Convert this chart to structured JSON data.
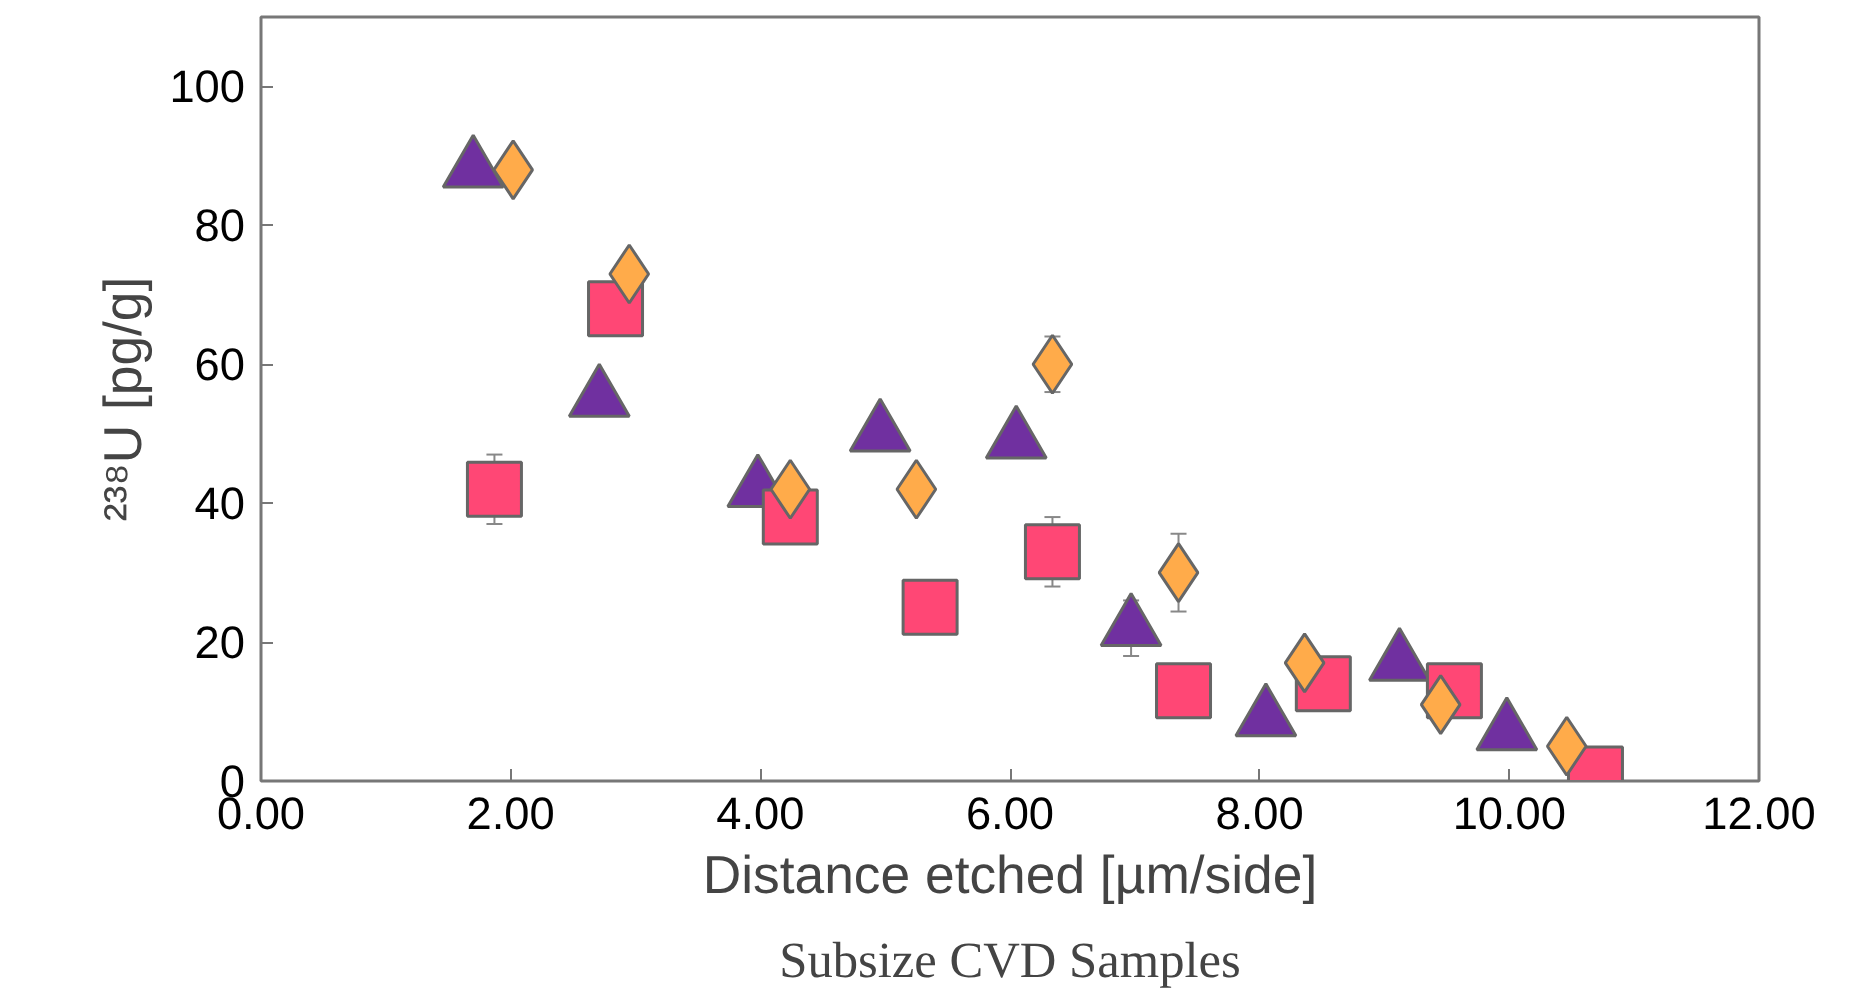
{
  "chart_data": {
    "type": "scatter",
    "title": "Subsize CVD Samples",
    "xlabel": "Distance etched [µm/side]",
    "ylabel": "²³⁸U [pg/g]",
    "xlim": [
      0,
      12
    ],
    "ylim": [
      0,
      110
    ],
    "xticks": [
      {
        "value": 0,
        "label": "0.00"
      },
      {
        "value": 2,
        "label": "2.00"
      },
      {
        "value": 4,
        "label": "4.00"
      },
      {
        "value": 6,
        "label": "6.00"
      },
      {
        "value": 8,
        "label": "8.00"
      },
      {
        "value": 10,
        "label": "10.00"
      },
      {
        "value": 12,
        "label": "12.00"
      }
    ],
    "yticks": [
      0,
      20,
      40,
      60,
      80,
      100
    ],
    "grid": false,
    "series": [
      {
        "marker": "triangle",
        "color": "#7030a0",
        "x": [
          1.7,
          2.71,
          3.98,
          4.96,
          6.05,
          6.97,
          8.05,
          9.12,
          9.98
        ],
        "values": [
          88,
          55,
          42,
          50,
          49,
          22,
          9,
          17,
          7
        ],
        "errors": [
          null,
          null,
          null,
          null,
          null,
          4,
          null,
          null,
          null
        ]
      },
      {
        "marker": "square",
        "color": "#ff4775",
        "x": [
          1.87,
          2.84,
          4.24,
          5.36,
          6.34,
          7.39,
          8.51,
          9.56,
          10.69
        ],
        "values": [
          42,
          68,
          38,
          25,
          33,
          13,
          14,
          13,
          1
        ],
        "errors": [
          5,
          null,
          null,
          null,
          5,
          null,
          null,
          null,
          null
        ]
      },
      {
        "marker": "diamond",
        "color": "#ffab4a",
        "x": [
          2.02,
          2.95,
          4.24,
          5.25,
          6.34,
          7.35,
          8.36,
          9.45,
          10.46
        ],
        "values": [
          88,
          73,
          42,
          42,
          60,
          30,
          17,
          11,
          5
        ],
        "errors": [
          null,
          null,
          null,
          null,
          4,
          5.6,
          null,
          null,
          null
        ]
      }
    ]
  }
}
